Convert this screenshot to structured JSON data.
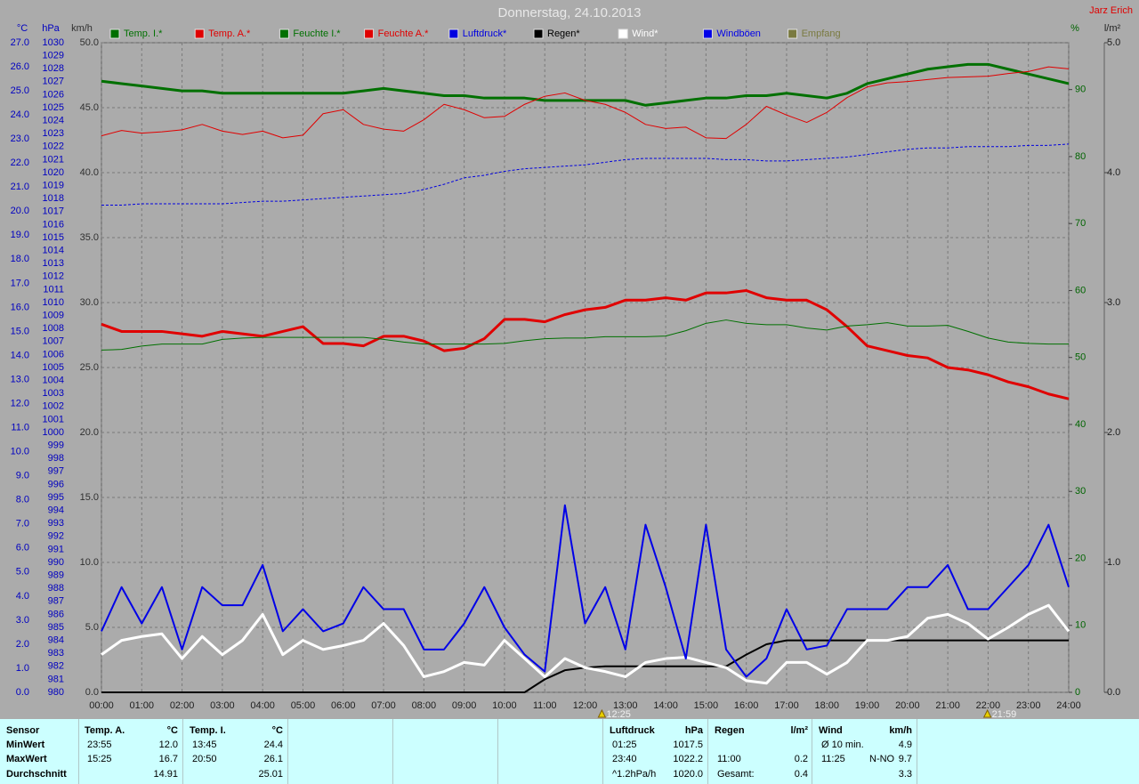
{
  "chart_data": {
    "type": "line",
    "title": "Donnerstag, 24.10.2013",
    "author": "Jarz Erich",
    "grid": true,
    "x": [
      0,
      0.5,
      1,
      1.5,
      2,
      2.5,
      3,
      3.5,
      4,
      4.5,
      5,
      5.5,
      6,
      6.5,
      7,
      7.5,
      8,
      8.5,
      9,
      9.5,
      10,
      10.5,
      11,
      11.5,
      12,
      12.5,
      13,
      13.5,
      14,
      14.5,
      15,
      15.5,
      16,
      16.5,
      17,
      17.5,
      18,
      18.5,
      19,
      19.5,
      20,
      20.5,
      21,
      21.5,
      22,
      22.5,
      23,
      23.5,
      24
    ],
    "xlim": [
      0,
      24
    ],
    "xticks": [
      {
        "value": 0,
        "label": "00:00"
      },
      {
        "value": 1,
        "label": "01:00"
      },
      {
        "value": 2,
        "label": "02:00"
      },
      {
        "value": 3,
        "label": "03:00"
      },
      {
        "value": 4,
        "label": "04:00"
      },
      {
        "value": 5,
        "label": "05:00"
      },
      {
        "value": 6,
        "label": "06:00"
      },
      {
        "value": 7,
        "label": "07:00"
      },
      {
        "value": 8,
        "label": "08:00"
      },
      {
        "value": 9,
        "label": "09:00"
      },
      {
        "value": 10,
        "label": "10:00"
      },
      {
        "value": 11,
        "label": "11:00"
      },
      {
        "value": 12,
        "label": "12:00"
      },
      {
        "value": 13,
        "label": "13:00"
      },
      {
        "value": 14,
        "label": "14:00"
      },
      {
        "value": 15,
        "label": "15:00"
      },
      {
        "value": 16,
        "label": "16:00"
      },
      {
        "value": 17,
        "label": "17:00"
      },
      {
        "value": 18,
        "label": "18:00"
      },
      {
        "value": 19,
        "label": "19:00"
      },
      {
        "value": 20,
        "label": "20:00"
      },
      {
        "value": 21,
        "label": "21:00"
      },
      {
        "value": 22,
        "label": "22:00"
      },
      {
        "value": 23,
        "label": "23:00"
      },
      {
        "value": 24,
        "label": "24:00"
      }
    ],
    "axes": [
      {
        "label": "°C",
        "color": "#0000c0",
        "lim": [
          0,
          27
        ],
        "ticks": [
          {
            "value": 0,
            "label": "0.0"
          },
          {
            "value": 1,
            "label": "1.0"
          },
          {
            "value": 2,
            "label": "2.0"
          },
          {
            "value": 3,
            "label": "3.0"
          },
          {
            "value": 4,
            "label": "4.0"
          },
          {
            "value": 5,
            "label": "5.0"
          },
          {
            "value": 6,
            "label": "6.0"
          },
          {
            "value": 7,
            "label": "7.0"
          },
          {
            "value": 8,
            "label": "8.0"
          },
          {
            "value": 9,
            "label": "9.0"
          },
          {
            "value": 10,
            "label": "10.0"
          },
          {
            "value": 11,
            "label": "11.0"
          },
          {
            "value": 12,
            "label": "12.0"
          },
          {
            "value": 13,
            "label": "13.0"
          },
          {
            "value": 14,
            "label": "14.0"
          },
          {
            "value": 15,
            "label": "15.0"
          },
          {
            "value": 16,
            "label": "16.0"
          },
          {
            "value": 17,
            "label": "17.0"
          },
          {
            "value": 18,
            "label": "18.0"
          },
          {
            "value": 19,
            "label": "19.0"
          },
          {
            "value": 20,
            "label": "20.0"
          },
          {
            "value": 21,
            "label": "21.0"
          },
          {
            "value": 22,
            "label": "22.0"
          },
          {
            "value": 23,
            "label": "23.0"
          },
          {
            "value": 24,
            "label": "24.0"
          },
          {
            "value": 25,
            "label": "25.0"
          },
          {
            "value": 26,
            "label": "26.0"
          },
          {
            "value": 27,
            "label": "27.0"
          }
        ]
      },
      {
        "label": "hPa",
        "color": "#0000c0",
        "lim": [
          980,
          1030
        ],
        "ticks": [
          980,
          981,
          982,
          983,
          984,
          985,
          986,
          987,
          988,
          989,
          990,
          991,
          992,
          993,
          994,
          995,
          996,
          997,
          998,
          999,
          1000,
          1001,
          1002,
          1003,
          1004,
          1005,
          1006,
          1007,
          1008,
          1009,
          1010,
          1011,
          1012,
          1013,
          1014,
          1015,
          1016,
          1017,
          1018,
          1019,
          1020,
          1021,
          1022,
          1023,
          1024,
          1025,
          1026,
          1027,
          1028,
          1029,
          1030
        ]
      },
      {
        "label": "km/h",
        "color": "#303030",
        "lim": [
          0,
          50
        ],
        "ticks": [
          {
            "value": 0,
            "label": "0.0"
          },
          {
            "value": 5,
            "label": "5.0"
          },
          {
            "value": 10,
            "label": "10.0"
          },
          {
            "value": 15,
            "label": "15.0"
          },
          {
            "value": 20,
            "label": "20.0"
          },
          {
            "value": 25,
            "label": "25.0"
          },
          {
            "value": 30,
            "label": "30.0"
          },
          {
            "value": 35,
            "label": "35.0"
          },
          {
            "value": 40,
            "label": "40.0"
          },
          {
            "value": 45,
            "label": "45.0"
          },
          {
            "value": 50,
            "label": "50.0"
          }
        ]
      },
      {
        "label": "%",
        "color": "#006400",
        "lim": [
          0,
          97
        ],
        "ticks": [
          0,
          10,
          20,
          30,
          40,
          50,
          60,
          70,
          80,
          90
        ]
      },
      {
        "label": "l/m²",
        "color": "#202020",
        "lim": [
          0,
          5
        ],
        "ticks": [
          {
            "value": 0,
            "label": "0.0"
          },
          {
            "value": 1,
            "label": "1.0"
          },
          {
            "value": 2,
            "label": "2.0"
          },
          {
            "value": 3,
            "label": "3.0"
          },
          {
            "value": 4,
            "label": "4.0"
          },
          {
            "value": 5,
            "label": "5.0"
          }
        ]
      }
    ],
    "series": [
      {
        "name": "Temp. I.*",
        "color": "#007000",
        "axis": 0,
        "values": [
          25.4,
          25.3,
          25.2,
          25.1,
          25.0,
          25.0,
          24.9,
          24.9,
          24.9,
          24.9,
          24.9,
          24.9,
          24.9,
          25.0,
          25.1,
          25.0,
          24.9,
          24.8,
          24.8,
          24.7,
          24.7,
          24.7,
          24.6,
          24.6,
          24.6,
          24.6,
          24.6,
          24.4,
          24.5,
          24.6,
          24.7,
          24.7,
          24.8,
          24.8,
          24.9,
          24.8,
          24.7,
          24.9,
          25.3,
          25.5,
          25.7,
          25.9,
          26.0,
          26.1,
          26.1,
          25.9,
          25.7,
          25.5,
          25.3
        ]
      },
      {
        "name": "Temp. A.*",
        "color": "#e00000",
        "axis": 0,
        "values": [
          15.3,
          15.0,
          15.0,
          15.0,
          14.9,
          14.8,
          15.0,
          14.9,
          14.8,
          15.0,
          15.2,
          14.5,
          14.5,
          14.4,
          14.8,
          14.8,
          14.6,
          14.2,
          14.3,
          14.7,
          15.5,
          15.5,
          15.4,
          15.7,
          15.9,
          16.0,
          16.3,
          16.3,
          16.4,
          16.3,
          16.6,
          16.6,
          16.7,
          16.4,
          16.3,
          16.3,
          15.9,
          15.2,
          14.4,
          14.2,
          14.0,
          13.9,
          13.5,
          13.4,
          13.2,
          12.9,
          12.7,
          12.4,
          12.2
        ]
      },
      {
        "name": "Feuchte I.*",
        "color": "#007000",
        "axis": 3,
        "values": [
          51.1,
          51.2,
          51.7,
          52.0,
          52.0,
          52.0,
          52.7,
          52.9,
          53.0,
          53.0,
          53.0,
          53.0,
          53.0,
          53.0,
          52.7,
          52.3,
          52.0,
          52.0,
          52.0,
          52.0,
          52.1,
          52.5,
          52.8,
          52.9,
          52.9,
          53.1,
          53.1,
          53.1,
          53.2,
          54.0,
          55.1,
          55.6,
          55.1,
          54.9,
          54.9,
          54.4,
          54.1,
          54.7,
          54.9,
          55.2,
          54.7,
          54.7,
          54.8,
          53.9,
          52.9,
          52.3,
          52.1,
          52.0,
          52.0
        ]
      },
      {
        "name": "Feuchte A.*",
        "color": "#e00000",
        "axis": 3,
        "values": [
          83.1,
          83.9,
          83.5,
          83.7,
          84.0,
          84.8,
          83.8,
          83.3,
          83.8,
          82.8,
          83.2,
          86.4,
          87.0,
          84.8,
          84.1,
          83.8,
          85.5,
          87.8,
          87.0,
          85.8,
          86.0,
          87.8,
          89.0,
          89.5,
          88.4,
          87.8,
          86.6,
          84.8,
          84.2,
          84.4,
          82.8,
          82.7,
          84.8,
          87.5,
          86.2,
          85.1,
          86.6,
          88.8,
          90.4,
          91.0,
          91.2,
          91.5,
          91.8,
          91.9,
          92.0,
          92.4,
          92.7,
          93.4,
          93.1
        ]
      },
      {
        "name": "Luftdruck*",
        "color": "#0000e0",
        "axis": 1,
        "values": [
          1017.5,
          1017.5,
          1017.6,
          1017.6,
          1017.6,
          1017.6,
          1017.6,
          1017.7,
          1017.8,
          1017.8,
          1017.9,
          1018.0,
          1018.1,
          1018.2,
          1018.3,
          1018.4,
          1018.7,
          1019.1,
          1019.6,
          1019.8,
          1020.1,
          1020.3,
          1020.4,
          1020.5,
          1020.6,
          1020.8,
          1021.0,
          1021.1,
          1021.1,
          1021.1,
          1021.1,
          1021.0,
          1021.0,
          1020.9,
          1020.9,
          1021.0,
          1021.1,
          1021.2,
          1021.4,
          1021.6,
          1021.8,
          1021.9,
          1021.9,
          1022.0,
          1022.0,
          1022.0,
          1022.1,
          1022.1,
          1022.2
        ]
      },
      {
        "name": "Regen*",
        "color": "#000000",
        "axis": 4,
        "values": [
          0,
          0,
          0,
          0,
          0,
          0,
          0,
          0,
          0,
          0,
          0,
          0,
          0,
          0,
          0,
          0,
          0,
          0,
          0,
          0,
          0,
          0,
          0.1,
          0.17,
          0.19,
          0.2,
          0.2,
          0.2,
          0.2,
          0.2,
          0.2,
          0.2,
          0.29,
          0.37,
          0.4,
          0.4,
          0.4,
          0.4,
          0.4,
          0.4,
          0.4,
          0.4,
          0.4,
          0.4,
          0.4,
          0.4,
          0.4,
          0.4,
          0.4
        ]
      },
      {
        "name": "Wind*",
        "color": "#ffffff",
        "axis": 2,
        "values": [
          2.9,
          4.0,
          4.3,
          4.5,
          2.6,
          4.3,
          2.9,
          4.0,
          6.0,
          2.9,
          4.0,
          3.3,
          3.6,
          4.0,
          5.3,
          3.6,
          1.2,
          1.6,
          2.3,
          2.1,
          4.0,
          2.6,
          1.2,
          2.6,
          1.9,
          1.6,
          1.2,
          2.3,
          2.6,
          2.7,
          2.3,
          1.9,
          0.9,
          0.7,
          2.3,
          2.3,
          1.4,
          2.3,
          4.0,
          4.0,
          4.3,
          5.7,
          6.0,
          5.3,
          4.1,
          5.0,
          6.0,
          6.7,
          4.7
        ]
      },
      {
        "name": "Windböen",
        "color": "#0000e8",
        "axis": 2,
        "values": [
          4.7,
          8.1,
          5.3,
          8.1,
          3.3,
          8.1,
          6.7,
          6.7,
          9.8,
          4.7,
          6.4,
          4.7,
          5.3,
          8.1,
          6.4,
          6.4,
          3.3,
          3.3,
          5.3,
          8.1,
          5.0,
          2.9,
          1.6,
          14.4,
          5.3,
          8.1,
          3.3,
          12.9,
          8.1,
          2.6,
          12.9,
          3.3,
          1.2,
          2.6,
          6.4,
          3.3,
          3.6,
          6.4,
          6.4,
          6.4,
          8.1,
          8.1,
          9.8,
          6.4,
          6.4,
          8.1,
          9.8,
          12.9,
          8.1
        ]
      },
      {
        "name": "Empfang",
        "color": "#7a7a40",
        "axis": 3,
        "values": [
          null,
          null,
          null,
          null,
          null,
          null,
          null,
          null,
          null,
          null,
          null,
          null,
          null,
          null,
          null,
          null,
          null,
          null,
          null,
          null,
          null,
          null,
          null,
          null,
          null,
          null,
          null,
          null,
          null,
          null,
          null,
          null,
          null,
          null,
          null,
          null,
          null,
          null,
          null,
          null,
          null,
          null,
          null,
          null,
          null,
          null,
          null,
          null,
          null
        ]
      }
    ],
    "annotations": [
      {
        "x": 12.4167,
        "label": "12:25"
      },
      {
        "x": 21.9833,
        "label": "21:59"
      }
    ]
  },
  "stats": {
    "row_labels": [
      "Sensor",
      "MinWert",
      "MaxWert",
      "Durchschnitt"
    ],
    "blocks": [
      {
        "title": "Temp. A.",
        "unit": "°C",
        "rows": [
          {
            "time": "23:55",
            "value": "12.0"
          },
          {
            "time": "15:25",
            "value": "16.7"
          },
          {
            "value": "14.91"
          }
        ]
      },
      {
        "title": "Temp. I.",
        "unit": "°C",
        "rows": [
          {
            "time": "13:45",
            "value": "24.4"
          },
          {
            "time": "20:50",
            "value": "26.1"
          },
          {
            "value": "25.01"
          }
        ]
      },
      {
        "title": "Luftdruck",
        "unit": "hPa",
        "rows": [
          {
            "time": "01:25",
            "value": "1017.5"
          },
          {
            "time": "23:40",
            "value": "1022.2"
          },
          {
            "time": "^1.2hPa/h",
            "value": "1020.0"
          }
        ]
      },
      {
        "title": "Regen",
        "unit": "l/m²",
        "rows": [
          null,
          {
            "time": "11:00",
            "value": "0.2"
          },
          {
            "time": "Gesamt:",
            "value": "0.4"
          }
        ]
      },
      {
        "title": "Wind",
        "unit": "km/h",
        "rows": [
          {
            "time": "Ø 10 min.",
            "value": "4.9"
          },
          {
            "time": "11:25",
            "dir": "N-NO",
            "value": "9.7"
          },
          {
            "value": "3.3"
          }
        ]
      }
    ]
  }
}
